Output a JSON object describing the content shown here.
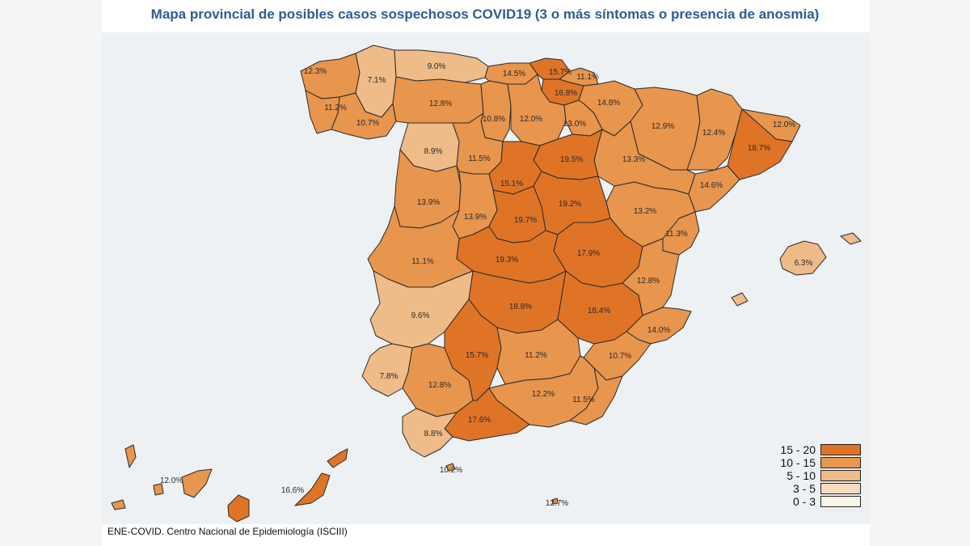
{
  "title": "Mapa provincial de posibles casos sospechosos COVID19 (3 o más síntomas o presencia de anosmia)",
  "source": "ENE-COVID. Centro Nacional de Epidemiología (ISCIII)",
  "colors": {
    "c15_20": "#e07426",
    "c10_15": "#e8954d",
    "c5_10": "#eebb89",
    "c3_5": "#f5dcc0",
    "c0_3": "#fbf6ea",
    "sea": "#eef1f3",
    "title": "#2e5b9a"
  },
  "legend": [
    {
      "label": "15 - 20",
      "color": "#e07426"
    },
    {
      "label": "10 - 15",
      "color": "#e8954d"
    },
    {
      "label": "5 - 10",
      "color": "#eebb89"
    },
    {
      "label": "3 - 5",
      "color": "#f5dcc0"
    },
    {
      "label": "0 - 3",
      "color": "#fbf6ea"
    }
  ],
  "provinces": [
    {
      "id": "a-coruna",
      "value": "12.3%"
    },
    {
      "id": "lugo",
      "value": "7.1%"
    },
    {
      "id": "asturias",
      "value": "9.0%"
    },
    {
      "id": "cantabria",
      "value": "14.5%"
    },
    {
      "id": "bizkaia",
      "value": "15.7%"
    },
    {
      "id": "gipuzkoa",
      "value": "11.1%"
    },
    {
      "id": "araba",
      "value": "16.8%"
    },
    {
      "id": "navarra",
      "value": "14.8%"
    },
    {
      "id": "pontevedra",
      "value": "11.2%"
    },
    {
      "id": "ourense",
      "value": "10.7%"
    },
    {
      "id": "leon",
      "value": "12.8%"
    },
    {
      "id": "palencia",
      "value": "10.8%"
    },
    {
      "id": "burgos",
      "value": "12.0%"
    },
    {
      "id": "la-rioja",
      "value": "13.0%"
    },
    {
      "id": "huesca",
      "value": "12.9%"
    },
    {
      "id": "lleida",
      "value": "12.4%"
    },
    {
      "id": "girona",
      "value": "12.0%"
    },
    {
      "id": "barcelona",
      "value": "18.7%"
    },
    {
      "id": "zamora",
      "value": "8.9%"
    },
    {
      "id": "valladolid",
      "value": "11.5%"
    },
    {
      "id": "soria",
      "value": "19.5%"
    },
    {
      "id": "zaragoza",
      "value": "13.3%"
    },
    {
      "id": "tarragona",
      "value": "14.6%"
    },
    {
      "id": "segovia",
      "value": "15.1%"
    },
    {
      "id": "salamanca",
      "value": "13.9%"
    },
    {
      "id": "avila",
      "value": "13.9%"
    },
    {
      "id": "guadalajara",
      "value": "19.2%"
    },
    {
      "id": "teruel",
      "value": "13.2%"
    },
    {
      "id": "madrid",
      "value": "19.7%"
    },
    {
      "id": "castellon",
      "value": "11.3%"
    },
    {
      "id": "baleares",
      "value": "6.3%"
    },
    {
      "id": "caceres",
      "value": "11.1%"
    },
    {
      "id": "toledo",
      "value": "19.3%"
    },
    {
      "id": "cuenca",
      "value": "17.9%"
    },
    {
      "id": "valencia",
      "value": "12.8%"
    },
    {
      "id": "badajoz",
      "value": "9.6%"
    },
    {
      "id": "ciudad-real",
      "value": "18.8%"
    },
    {
      "id": "albacete",
      "value": "18.4%"
    },
    {
      "id": "alicante",
      "value": "14.0%"
    },
    {
      "id": "cordoba",
      "value": "15.7%"
    },
    {
      "id": "jaen",
      "value": "11.2%"
    },
    {
      "id": "murcia",
      "value": "10.7%"
    },
    {
      "id": "huelva",
      "value": "7.8%"
    },
    {
      "id": "sevilla",
      "value": "12.8%"
    },
    {
      "id": "granada",
      "value": "12.2%"
    },
    {
      "id": "almeria",
      "value": "11.5%"
    },
    {
      "id": "malaga",
      "value": "17.6%"
    },
    {
      "id": "cadiz",
      "value": "8.8%"
    },
    {
      "id": "ceuta",
      "value": "10.2%"
    },
    {
      "id": "melilla",
      "value": "12.7%"
    },
    {
      "id": "santa-cruz-de-tenerife",
      "value": "12.0%"
    },
    {
      "id": "las-palmas",
      "value": "16.6%"
    }
  ]
}
